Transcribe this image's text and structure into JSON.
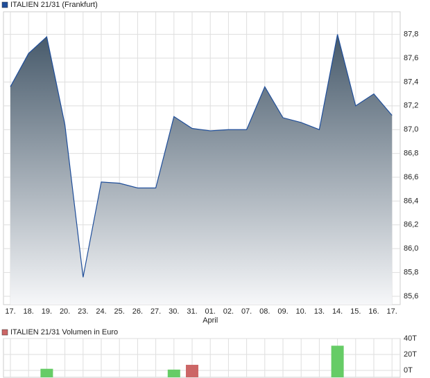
{
  "chart_data": [
    {
      "type": "area",
      "title": "ITALIEN 21/31 (Frankfurt)",
      "categories": [
        "17.",
        "18.",
        "19.",
        "20.",
        "23.",
        "24.",
        "25.",
        "26.",
        "27.",
        "30.",
        "31.",
        "01.",
        "02.",
        "07.",
        "08.",
        "09.",
        "10.",
        "13.",
        "14.",
        "15.",
        "16.",
        "17."
      ],
      "month_label": "April",
      "month_label_at": 11,
      "series": [
        {
          "name": "ITALIEN 21/31 (Frankfurt)",
          "color": "#1f4e9a",
          "values": [
            87.36,
            87.64,
            87.78,
            87.04,
            85.76,
            86.56,
            86.55,
            86.51,
            86.51,
            87.11,
            87.01,
            86.99,
            87.0,
            87.0,
            87.36,
            87.1,
            87.06,
            87.0,
            87.8,
            87.2,
            87.3,
            87.12
          ]
        }
      ],
      "ylim": [
        85.53,
        87.99
      ],
      "yticks": [
        {
          "value": 85.6,
          "label": "85,6"
        },
        {
          "value": 85.8,
          "label": "85,8"
        },
        {
          "value": 86.0,
          "label": "86,0"
        },
        {
          "value": 86.2,
          "label": "86,2"
        },
        {
          "value": 86.4,
          "label": "86,4"
        },
        {
          "value": 86.6,
          "label": "86,6"
        },
        {
          "value": 86.8,
          "label": "86,8"
        },
        {
          "value": 87.0,
          "label": "87,0"
        },
        {
          "value": 87.2,
          "label": "87,2"
        },
        {
          "value": 87.4,
          "label": "87,4"
        },
        {
          "value": 87.6,
          "label": "87,6"
        },
        {
          "value": 87.8,
          "label": "87,8"
        }
      ],
      "grid": true
    },
    {
      "type": "bar",
      "title": "ITALIEN 21/31 Volumen in Euro",
      "values": [
        null,
        null,
        2000,
        null,
        null,
        null,
        null,
        null,
        null,
        1000,
        7000,
        null,
        null,
        null,
        null,
        null,
        null,
        null,
        31000,
        null,
        null,
        null
      ],
      "colors": [
        null,
        null,
        "#66cc66",
        null,
        null,
        null,
        null,
        null,
        null,
        "#66cc66",
        "#cc6666",
        null,
        null,
        null,
        null,
        null,
        null,
        null,
        "#66cc66",
        null,
        null,
        null
      ],
      "ylim": [
        0,
        40000
      ],
      "yticks": [
        {
          "value": 0,
          "label": "0T"
        },
        {
          "value": 20000,
          "label": "20T"
        },
        {
          "value": 40000,
          "label": "40T"
        }
      ],
      "grid": true
    }
  ]
}
